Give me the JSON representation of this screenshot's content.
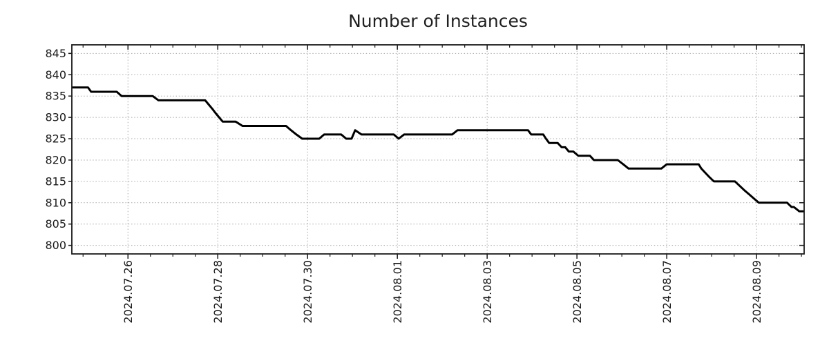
{
  "page": {
    "background": "#ffffff"
  },
  "chart_data": {
    "type": "line",
    "title": "Number of Instances",
    "xlabel": "",
    "ylabel": "",
    "legend": {
      "show": false
    },
    "grid": {
      "show": true,
      "style": "dotted",
      "color": "#a8a8a8"
    },
    "frame_color": "#1a1a1a",
    "tick_color": "#1a1a1a",
    "text_color": "#1a1a1a",
    "x_axis": {
      "type": "time",
      "reference_date": "2024-07-26",
      "unit": "days_from_reference",
      "range": [
        -1.25,
        15.06
      ],
      "major_ticks_days": [
        0,
        2,
        4,
        6,
        8,
        10,
        12,
        14
      ],
      "major_tick_labels": [
        "2024.07.26",
        "2024.07.28",
        "2024.07.30",
        "2024.08.01",
        "2024.08.03",
        "2024.08.05",
        "2024.08.07",
        "2024.08.09"
      ],
      "minor_tick_interval_days": 0.5,
      "label_rotation_deg": 90
    },
    "y_axis": {
      "range": [
        798,
        847
      ],
      "ticks": [
        800,
        805,
        810,
        815,
        820,
        825,
        830,
        835,
        840,
        845
      ]
    },
    "series": [
      {
        "name": "Number of Instances",
        "color": "#000000",
        "line_width": 3,
        "points": [
          [
            -1.25,
            837
          ],
          [
            -0.89,
            837
          ],
          [
            -0.82,
            836
          ],
          [
            -0.25,
            836
          ],
          [
            -0.14,
            835
          ],
          [
            0.55,
            835
          ],
          [
            0.68,
            834
          ],
          [
            1.72,
            834
          ],
          [
            1.8,
            833
          ],
          [
            1.88,
            832
          ],
          [
            1.95,
            831
          ],
          [
            2.03,
            830
          ],
          [
            2.11,
            829
          ],
          [
            2.4,
            829
          ],
          [
            2.55,
            828
          ],
          [
            3.52,
            828
          ],
          [
            3.63,
            827
          ],
          [
            3.75,
            826
          ],
          [
            3.88,
            825
          ],
          [
            4.26,
            825
          ],
          [
            4.37,
            826
          ],
          [
            4.75,
            826
          ],
          [
            4.86,
            825
          ],
          [
            4.98,
            825
          ],
          [
            5.06,
            827
          ],
          [
            5.2,
            826
          ],
          [
            5.92,
            826
          ],
          [
            6.03,
            825
          ],
          [
            6.15,
            826
          ],
          [
            7.22,
            826
          ],
          [
            7.34,
            827
          ],
          [
            8.91,
            827
          ],
          [
            8.98,
            826
          ],
          [
            9.25,
            826
          ],
          [
            9.31,
            825
          ],
          [
            9.38,
            824
          ],
          [
            9.57,
            824
          ],
          [
            9.66,
            823
          ],
          [
            9.74,
            823
          ],
          [
            9.82,
            822
          ],
          [
            9.92,
            822
          ],
          [
            10.03,
            821
          ],
          [
            10.29,
            821
          ],
          [
            10.38,
            820
          ],
          [
            10.91,
            820
          ],
          [
            11.03,
            819
          ],
          [
            11.15,
            818
          ],
          [
            11.88,
            818
          ],
          [
            12.0,
            819
          ],
          [
            12.71,
            819
          ],
          [
            12.77,
            818
          ],
          [
            12.86,
            817
          ],
          [
            12.95,
            816
          ],
          [
            13.05,
            815
          ],
          [
            13.52,
            815
          ],
          [
            13.62,
            814
          ],
          [
            13.72,
            813
          ],
          [
            13.83,
            812
          ],
          [
            13.94,
            811
          ],
          [
            14.05,
            810
          ],
          [
            14.68,
            810
          ],
          [
            14.78,
            809
          ],
          [
            14.83,
            809
          ],
          [
            14.95,
            808
          ],
          [
            15.06,
            808
          ]
        ]
      }
    ]
  }
}
